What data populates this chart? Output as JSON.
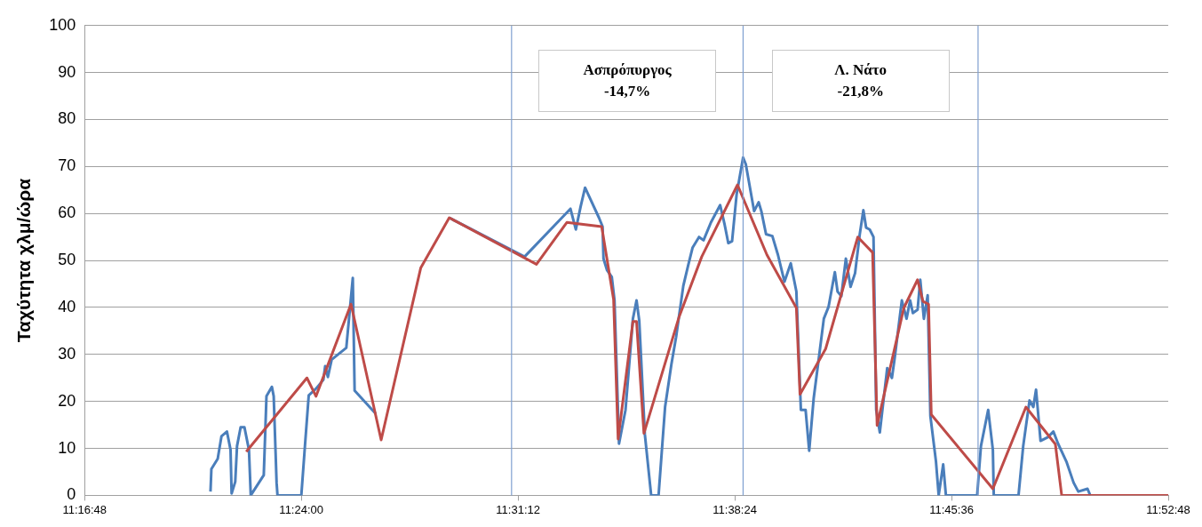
{
  "chart_data": {
    "type": "line",
    "ylabel": "Ταχύτητα χλμ/ώρα",
    "xlim": [
      11.28,
      11.88
    ],
    "xticks": [
      {
        "value": 11.28,
        "label": "11:16:48"
      },
      {
        "value": 11.4,
        "label": "11:24:00"
      },
      {
        "value": 11.52,
        "label": "11:31:12"
      },
      {
        "value": 11.64,
        "label": "11:38:24"
      },
      {
        "value": 11.76,
        "label": "11:45:36"
      },
      {
        "value": 11.88,
        "label": "11:52:48"
      }
    ],
    "ylim": [
      0,
      100
    ],
    "yticks": [
      0,
      10,
      20,
      30,
      40,
      50,
      60,
      70,
      80,
      90,
      100
    ],
    "grid": "y",
    "legend": false,
    "marker": "none",
    "ref_lines": [
      {
        "axis": "x",
        "value": 11.5164,
        "color": "#7f9fd0"
      },
      {
        "axis": "x",
        "value": 11.6446,
        "color": "#7f9fd0"
      },
      {
        "axis": "x",
        "value": 11.7747,
        "color": "#7f9fd0"
      }
    ],
    "annotations": [
      "Ασπρόπυργος\n-14,7%",
      "Λ. Νάτο\n-21,8%"
    ],
    "series": [
      {
        "color": "#4a7ebb",
        "x": [
          11.3497,
          11.3502,
          11.3537,
          11.3558,
          11.3588,
          11.3608,
          11.3614,
          11.3634,
          11.3644,
          11.3664,
          11.3685,
          11.371,
          11.372,
          11.3792,
          11.3807,
          11.3837,
          11.3847,
          11.3863,
          11.3868,
          11.4,
          11.402,
          11.4041,
          11.4081,
          11.4122,
          11.4132,
          11.4147,
          11.4168,
          11.4249,
          11.4285,
          11.4295,
          11.4412,
          11.4442,
          11.4661,
          11.4819,
          11.5236,
          11.549,
          11.552,
          11.5546,
          11.5571,
          11.5648,
          11.5668,
          11.5673,
          11.5693,
          11.5719,
          11.5734,
          11.5759,
          11.5795,
          11.5836,
          11.5856,
          11.5871,
          11.5902,
          11.5937,
          11.5978,
          11.6014,
          11.6049,
          11.6075,
          11.6115,
          11.6141,
          11.6166,
          11.6202,
          11.6227,
          11.6268,
          11.6319,
          11.6344,
          11.6364,
          11.6385,
          11.641,
          11.6446,
          11.6461,
          11.6507,
          11.6532,
          11.6547,
          11.6573,
          11.6608,
          11.6639,
          11.6675,
          11.671,
          11.6741,
          11.6766,
          11.6792,
          11.6812,
          11.6837,
          11.6863,
          11.6893,
          11.6919,
          11.6954,
          11.6969,
          11.699,
          11.7015,
          11.7041,
          11.7066,
          11.7092,
          11.7112,
          11.7127,
          11.7147,
          11.7168,
          11.7183,
          11.7203,
          11.7244,
          11.727,
          11.7285,
          11.7325,
          11.7351,
          11.7371,
          11.7386,
          11.7412,
          11.7427,
          11.7447,
          11.7468,
          11.7483,
          11.7514,
          11.7529,
          11.7554,
          11.7569,
          11.7742,
          11.7763,
          11.7803,
          11.7829,
          11.7834,
          11.7971,
          11.7997,
          11.8032,
          11.8053,
          11.8068,
          11.8093,
          11.8134,
          11.8164,
          11.819,
          11.8236,
          11.8276,
          11.8302,
          11.8353,
          11.8368
        ],
        "values": [
          0.8,
          5.6,
          7.8,
          12.6,
          13.6,
          9.7,
          0.4,
          2.9,
          10.5,
          14.5,
          14.5,
          9.7,
          0,
          4.3,
          21.1,
          23.1,
          21.1,
          2.7,
          0,
          0,
          10.5,
          21.3,
          22.7,
          24.6,
          27.5,
          25.2,
          28.9,
          31.4,
          46.3,
          22.3,
          17.4,
          null,
          null,
          59.1,
          50.8,
          61,
          56.6,
          61.4,
          65.5,
          59.1,
          57.2,
          50.4,
          47.9,
          46.5,
          41.5,
          11,
          18.2,
          37.6,
          41.5,
          37.2,
          13,
          0,
          0,
          18.8,
          27.9,
          33.7,
          44.6,
          48.8,
          52.7,
          55,
          54.3,
          58.1,
          61.8,
          57.6,
          53.7,
          54.1,
          64,
          71.9,
          70.5,
          60.5,
          62.4,
          60.5,
          55.6,
          55.2,
          51.2,
          45.5,
          49.4,
          43.4,
          18.2,
          18.2,
          9.5,
          20.7,
          28.5,
          37.6,
          40.1,
          47.5,
          43.4,
          42.4,
          50.4,
          44.4,
          47.3,
          55.6,
          60.7,
          57,
          56.6,
          55,
          18.2,
          13.4,
          27.1,
          25,
          29.1,
          41.5,
          37.6,
          41.5,
          38.8,
          39.5,
          45.9,
          37.6,
          42.6,
          16.9,
          7.2,
          0,
          6.6,
          0,
          0,
          10.5,
          18.2,
          9.7,
          0,
          0,
          10.5,
          20.2,
          18.8,
          22.5,
          11.6,
          12.4,
          13.6,
          11,
          7.2,
          2.7,
          0.8,
          1.4,
          0
        ]
      },
      {
        "color": "#be4b48",
        "x": [
          11.3695,
          11.4031,
          11.4081,
          11.4275,
          11.4442,
          11.4661,
          11.4819,
          11.5302,
          11.547,
          11.5663,
          11.5729,
          11.5754,
          11.5836,
          11.5856,
          11.5897,
          11.609,
          11.6217,
          11.6415,
          11.6578,
          11.6741,
          11.6761,
          11.6903,
          11.7081,
          11.7163,
          11.7188,
          11.7336,
          11.7412,
          11.7442,
          11.7473,
          11.7488,
          11.7829,
          11.8012,
          11.8175,
          11.821,
          11.88
        ],
        "values": [
          9.3,
          25,
          21.1,
          40.7,
          11.8,
          48.4,
          59.1,
          49.2,
          58.1,
          57.2,
          41.7,
          12,
          37,
          37,
          13.2,
          37.8,
          50.8,
          66.1,
          51.2,
          39.9,
          21.5,
          31.2,
          55,
          51.7,
          14.9,
          39.9,
          45.9,
          41.3,
          40.7,
          17.2,
          1.4,
          18.8,
          10.9,
          0,
          0
        ]
      }
    ]
  }
}
